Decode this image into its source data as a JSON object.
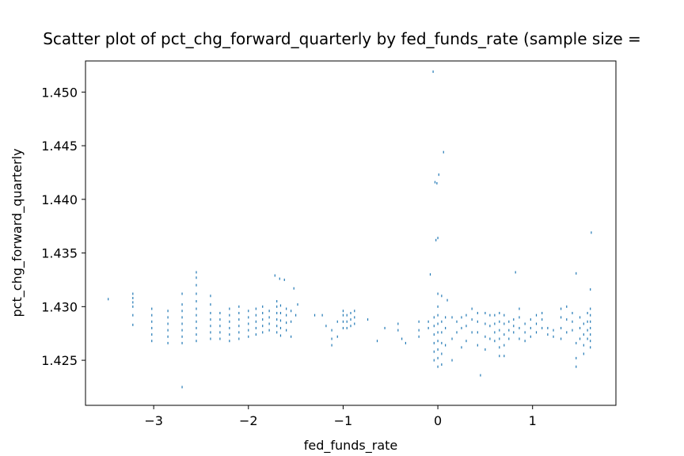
{
  "chart_data": {
    "type": "scatter",
    "title": "Scatter plot of pct_chg_forward_quarterly by fed_funds_rate (sample size =",
    "xlabel": "fed_funds_rate",
    "ylabel": "pct_chg_forward_quarterly",
    "xlim": [
      -3.72,
      1.88
    ],
    "ylim": [
      1.4208,
      1.4529
    ],
    "x_ticks": [
      {
        "value": -3,
        "label": "−3"
      },
      {
        "value": -2,
        "label": "−2"
      },
      {
        "value": -1,
        "label": "−1"
      },
      {
        "value": 0,
        "label": "0"
      },
      {
        "value": 1,
        "label": "1"
      }
    ],
    "y_ticks": [
      {
        "value": 1.425,
        "label": "1.425"
      },
      {
        "value": 1.43,
        "label": "1.430"
      },
      {
        "value": 1.435,
        "label": "1.435"
      },
      {
        "value": 1.44,
        "label": "1.440"
      },
      {
        "value": 1.445,
        "label": "1.445"
      },
      {
        "value": 1.45,
        "label": "1.450"
      }
    ],
    "grid": false,
    "marker_color": "#1f77b4",
    "series": [
      {
        "points": [
          [
            -3.48,
            1.4307
          ],
          [
            -3.22,
            1.4283
          ],
          [
            -3.22,
            1.4292
          ],
          [
            -3.22,
            1.43
          ],
          [
            -3.22,
            1.4304
          ],
          [
            -3.22,
            1.4308
          ],
          [
            -3.22,
            1.4312
          ],
          [
            -3.02,
            1.4268
          ],
          [
            -3.02,
            1.4274
          ],
          [
            -3.02,
            1.428
          ],
          [
            -3.02,
            1.4286
          ],
          [
            -3.02,
            1.4292
          ],
          [
            -3.02,
            1.4298
          ],
          [
            -2.85,
            1.4266
          ],
          [
            -2.85,
            1.4272
          ],
          [
            -2.85,
            1.4278
          ],
          [
            -2.85,
            1.4284
          ],
          [
            -2.85,
            1.429
          ],
          [
            -2.85,
            1.4296
          ],
          [
            -2.7,
            1.4266
          ],
          [
            -2.7,
            1.4272
          ],
          [
            -2.7,
            1.4278
          ],
          [
            -2.7,
            1.4284
          ],
          [
            -2.7,
            1.429
          ],
          [
            -2.7,
            1.4296
          ],
          [
            -2.7,
            1.4302
          ],
          [
            -2.7,
            1.4312
          ],
          [
            -2.7,
            1.4225
          ],
          [
            -2.55,
            1.4268
          ],
          [
            -2.55,
            1.4274
          ],
          [
            -2.55,
            1.428
          ],
          [
            -2.55,
            1.4286
          ],
          [
            -2.55,
            1.4292
          ],
          [
            -2.55,
            1.4298
          ],
          [
            -2.55,
            1.4305
          ],
          [
            -2.55,
            1.4312
          ],
          [
            -2.55,
            1.432
          ],
          [
            -2.55,
            1.4327
          ],
          [
            -2.55,
            1.4332
          ],
          [
            -2.4,
            1.427
          ],
          [
            -2.4,
            1.4276
          ],
          [
            -2.4,
            1.4282
          ],
          [
            -2.4,
            1.4288
          ],
          [
            -2.4,
            1.4294
          ],
          [
            -2.4,
            1.4302
          ],
          [
            -2.4,
            1.431
          ],
          [
            -2.3,
            1.427
          ],
          [
            -2.3,
            1.4276
          ],
          [
            -2.3,
            1.4282
          ],
          [
            -2.3,
            1.4288
          ],
          [
            -2.3,
            1.4294
          ],
          [
            -2.2,
            1.4268
          ],
          [
            -2.2,
            1.4274
          ],
          [
            -2.2,
            1.428
          ],
          [
            -2.2,
            1.4286
          ],
          [
            -2.2,
            1.4292
          ],
          [
            -2.2,
            1.4298
          ],
          [
            -2.1,
            1.427
          ],
          [
            -2.1,
            1.4276
          ],
          [
            -2.1,
            1.4282
          ],
          [
            -2.1,
            1.4288
          ],
          [
            -2.1,
            1.4294
          ],
          [
            -2.1,
            1.43
          ],
          [
            -2.0,
            1.4272
          ],
          [
            -2.0,
            1.4278
          ],
          [
            -2.0,
            1.4284
          ],
          [
            -2.0,
            1.429
          ],
          [
            -2.0,
            1.4296
          ],
          [
            -1.92,
            1.4274
          ],
          [
            -1.92,
            1.428
          ],
          [
            -1.92,
            1.4286
          ],
          [
            -1.92,
            1.4292
          ],
          [
            -1.92,
            1.4298
          ],
          [
            -1.85,
            1.4276
          ],
          [
            -1.85,
            1.4282
          ],
          [
            -1.85,
            1.4288
          ],
          [
            -1.85,
            1.4294
          ],
          [
            -1.85,
            1.43
          ],
          [
            -1.78,
            1.4278
          ],
          [
            -1.78,
            1.4284
          ],
          [
            -1.78,
            1.429
          ],
          [
            -1.78,
            1.4296
          ],
          [
            -1.7,
            1.4276
          ],
          [
            -1.7,
            1.4282
          ],
          [
            -1.7,
            1.4288
          ],
          [
            -1.7,
            1.4294
          ],
          [
            -1.7,
            1.43
          ],
          [
            -1.7,
            1.4305
          ],
          [
            -1.66,
            1.4273
          ],
          [
            -1.66,
            1.428
          ],
          [
            -1.66,
            1.4287
          ],
          [
            -1.66,
            1.4294
          ],
          [
            -1.66,
            1.4301
          ],
          [
            -1.6,
            1.4278
          ],
          [
            -1.6,
            1.4285
          ],
          [
            -1.6,
            1.4292
          ],
          [
            -1.6,
            1.4298
          ],
          [
            -1.55,
            1.4272
          ],
          [
            -1.55,
            1.4286
          ],
          [
            -1.55,
            1.4296
          ],
          [
            -1.5,
            1.4292
          ],
          [
            -1.48,
            1.4302
          ],
          [
            -1.72,
            1.4329
          ],
          [
            -1.67,
            1.4326
          ],
          [
            -1.62,
            1.4325
          ],
          [
            -1.52,
            1.4317
          ],
          [
            -1.3,
            1.4292
          ],
          [
            -1.22,
            1.4292
          ],
          [
            -1.18,
            1.4282
          ],
          [
            -1.12,
            1.4264
          ],
          [
            -1.12,
            1.427
          ],
          [
            -1.12,
            1.4278
          ],
          [
            -1.06,
            1.4272
          ],
          [
            -1.06,
            1.4286
          ],
          [
            -1.0,
            1.428
          ],
          [
            -1.0,
            1.4286
          ],
          [
            -1.0,
            1.4292
          ],
          [
            -1.0,
            1.4296
          ],
          [
            -0.96,
            1.428
          ],
          [
            -0.96,
            1.4286
          ],
          [
            -0.96,
            1.4292
          ],
          [
            -0.92,
            1.4282
          ],
          [
            -0.92,
            1.4288
          ],
          [
            -0.92,
            1.4294
          ],
          [
            -0.88,
            1.4284
          ],
          [
            -0.88,
            1.429
          ],
          [
            -0.88,
            1.4296
          ],
          [
            -0.74,
            1.4288
          ],
          [
            -0.64,
            1.4268
          ],
          [
            -0.56,
            1.428
          ],
          [
            -0.42,
            1.4278
          ],
          [
            -0.42,
            1.4284
          ],
          [
            -0.38,
            1.427
          ],
          [
            -0.34,
            1.4266
          ],
          [
            -0.2,
            1.4272
          ],
          [
            -0.2,
            1.4278
          ],
          [
            -0.2,
            1.4286
          ],
          [
            -0.1,
            1.428
          ],
          [
            -0.1,
            1.4286
          ],
          [
            -0.08,
            1.433
          ],
          [
            -0.05,
            1.4519
          ],
          [
            -0.03,
            1.4416
          ],
          [
            -0.01,
            1.4415
          ],
          [
            0.01,
            1.4423
          ],
          [
            0.06,
            1.4444
          ],
          [
            -0.02,
            1.4362
          ],
          [
            0.0,
            1.4364
          ],
          [
            -0.04,
            1.425
          ],
          [
            -0.04,
            1.4258
          ],
          [
            -0.04,
            1.4266
          ],
          [
            -0.04,
            1.4274
          ],
          [
            -0.04,
            1.4282
          ],
          [
            -0.04,
            1.429
          ],
          [
            0.0,
            1.4244
          ],
          [
            0.0,
            1.4252
          ],
          [
            0.0,
            1.426
          ],
          [
            0.0,
            1.4268
          ],
          [
            0.0,
            1.4276
          ],
          [
            0.0,
            1.4284
          ],
          [
            0.0,
            1.4292
          ],
          [
            0.0,
            1.43
          ],
          [
            0.0,
            1.4312
          ],
          [
            0.04,
            1.4246
          ],
          [
            0.04,
            1.4256
          ],
          [
            0.04,
            1.4266
          ],
          [
            0.04,
            1.4276
          ],
          [
            0.04,
            1.4286
          ],
          [
            0.04,
            1.431
          ],
          [
            0.08,
            1.4264
          ],
          [
            0.08,
            1.428
          ],
          [
            0.08,
            1.429
          ],
          [
            0.1,
            1.4306
          ],
          [
            0.15,
            1.425
          ],
          [
            0.15,
            1.427
          ],
          [
            0.15,
            1.429
          ],
          [
            0.2,
            1.4276
          ],
          [
            0.2,
            1.4286
          ],
          [
            0.25,
            1.4262
          ],
          [
            0.25,
            1.428
          ],
          [
            0.25,
            1.429
          ],
          [
            0.3,
            1.4268
          ],
          [
            0.3,
            1.4282
          ],
          [
            0.3,
            1.4292
          ],
          [
            0.36,
            1.4276
          ],
          [
            0.36,
            1.4288
          ],
          [
            0.36,
            1.4298
          ],
          [
            0.42,
            1.4264
          ],
          [
            0.42,
            1.4276
          ],
          [
            0.42,
            1.4286
          ],
          [
            0.42,
            1.4294
          ],
          [
            0.45,
            1.4236
          ],
          [
            0.5,
            1.426
          ],
          [
            0.5,
            1.4272
          ],
          [
            0.5,
            1.4284
          ],
          [
            0.5,
            1.4294
          ],
          [
            0.55,
            1.427
          ],
          [
            0.55,
            1.4282
          ],
          [
            0.55,
            1.4292
          ],
          [
            0.6,
            1.4268
          ],
          [
            0.6,
            1.4276
          ],
          [
            0.6,
            1.4284
          ],
          [
            0.6,
            1.4292
          ],
          [
            0.65,
            1.4254
          ],
          [
            0.65,
            1.4262
          ],
          [
            0.65,
            1.427
          ],
          [
            0.65,
            1.4278
          ],
          [
            0.65,
            1.4286
          ],
          [
            0.65,
            1.4294
          ],
          [
            0.7,
            1.4254
          ],
          [
            0.7,
            1.4264
          ],
          [
            0.7,
            1.4274
          ],
          [
            0.7,
            1.4284
          ],
          [
            0.7,
            1.4292
          ],
          [
            0.75,
            1.427
          ],
          [
            0.75,
            1.4278
          ],
          [
            0.75,
            1.4286
          ],
          [
            0.8,
            1.4276
          ],
          [
            0.8,
            1.4282
          ],
          [
            0.8,
            1.4288
          ],
          [
            0.82,
            1.4332
          ],
          [
            0.86,
            1.427
          ],
          [
            0.86,
            1.428
          ],
          [
            0.86,
            1.429
          ],
          [
            0.86,
            1.4298
          ],
          [
            0.92,
            1.4268
          ],
          [
            0.92,
            1.4276
          ],
          [
            0.92,
            1.4284
          ],
          [
            0.98,
            1.4272
          ],
          [
            0.98,
            1.428
          ],
          [
            0.98,
            1.4288
          ],
          [
            1.04,
            1.4276
          ],
          [
            1.04,
            1.4284
          ],
          [
            1.04,
            1.4292
          ],
          [
            1.1,
            1.428
          ],
          [
            1.1,
            1.4288
          ],
          [
            1.1,
            1.4294
          ],
          [
            1.16,
            1.4274
          ],
          [
            1.16,
            1.428
          ],
          [
            1.22,
            1.4272
          ],
          [
            1.22,
            1.4278
          ],
          [
            1.3,
            1.427
          ],
          [
            1.3,
            1.428
          ],
          [
            1.3,
            1.429
          ],
          [
            1.3,
            1.4298
          ],
          [
            1.36,
            1.4276
          ],
          [
            1.36,
            1.4288
          ],
          [
            1.36,
            1.43
          ],
          [
            1.42,
            1.4278
          ],
          [
            1.42,
            1.4286
          ],
          [
            1.42,
            1.4294
          ],
          [
            1.46,
            1.4244
          ],
          [
            1.46,
            1.4252
          ],
          [
            1.46,
            1.4266
          ],
          [
            1.46,
            1.4331
          ],
          [
            1.5,
            1.427
          ],
          [
            1.5,
            1.428
          ],
          [
            1.5,
            1.429
          ],
          [
            1.54,
            1.4256
          ],
          [
            1.54,
            1.4264
          ],
          [
            1.54,
            1.4274
          ],
          [
            1.54,
            1.4284
          ],
          [
            1.58,
            1.427
          ],
          [
            1.58,
            1.4278
          ],
          [
            1.58,
            1.4286
          ],
          [
            1.58,
            1.4294
          ],
          [
            1.61,
            1.4262
          ],
          [
            1.61,
            1.4268
          ],
          [
            1.61,
            1.4274
          ],
          [
            1.61,
            1.428
          ],
          [
            1.61,
            1.4286
          ],
          [
            1.61,
            1.4292
          ],
          [
            1.61,
            1.4298
          ],
          [
            1.61,
            1.4316
          ],
          [
            1.62,
            1.4369
          ]
        ]
      }
    ]
  }
}
